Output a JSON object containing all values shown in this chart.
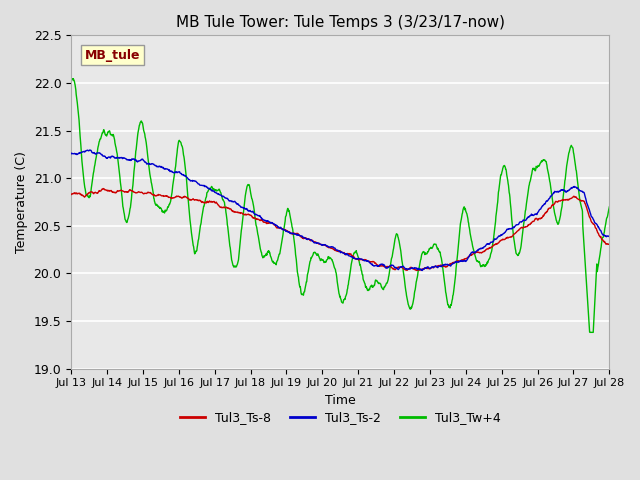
{
  "title": "MB Tule Tower: Tule Temps 3 (3/23/17-now)",
  "xlabel": "Time",
  "ylabel": "Temperature (C)",
  "ylim": [
    19.0,
    22.5
  ],
  "yticks": [
    19.0,
    19.5,
    20.0,
    20.5,
    21.0,
    21.5,
    22.0,
    22.5
  ],
  "xtick_labels": [
    "Jul 13",
    "Jul 14",
    "Jul 15",
    "Jul 16",
    "Jul 17",
    "Jul 18",
    "Jul 19",
    "Jul 20",
    "Jul 21",
    "Jul 22",
    "Jul 23",
    "Jul 24",
    "Jul 25",
    "Jul 26",
    "Jul 27",
    "Jul 28"
  ],
  "bg_color": "#e0e0e0",
  "plot_bg_color": "#e8e8e8",
  "grid_color": "#ffffff",
  "line_red": "#cc0000",
  "line_blue": "#0000cc",
  "line_green": "#00bb00",
  "watermark_text": "MB_tule",
  "watermark_bg": "#ffffcc",
  "watermark_fg": "#880000",
  "legend_labels": [
    "Tul3_Ts-8",
    "Tul3_Ts-2",
    "Tul3_Tw+4"
  ],
  "legend_colors": [
    "#cc0000",
    "#0000cc",
    "#00bb00"
  ],
  "figsize": [
    6.4,
    4.8
  ],
  "dpi": 100
}
